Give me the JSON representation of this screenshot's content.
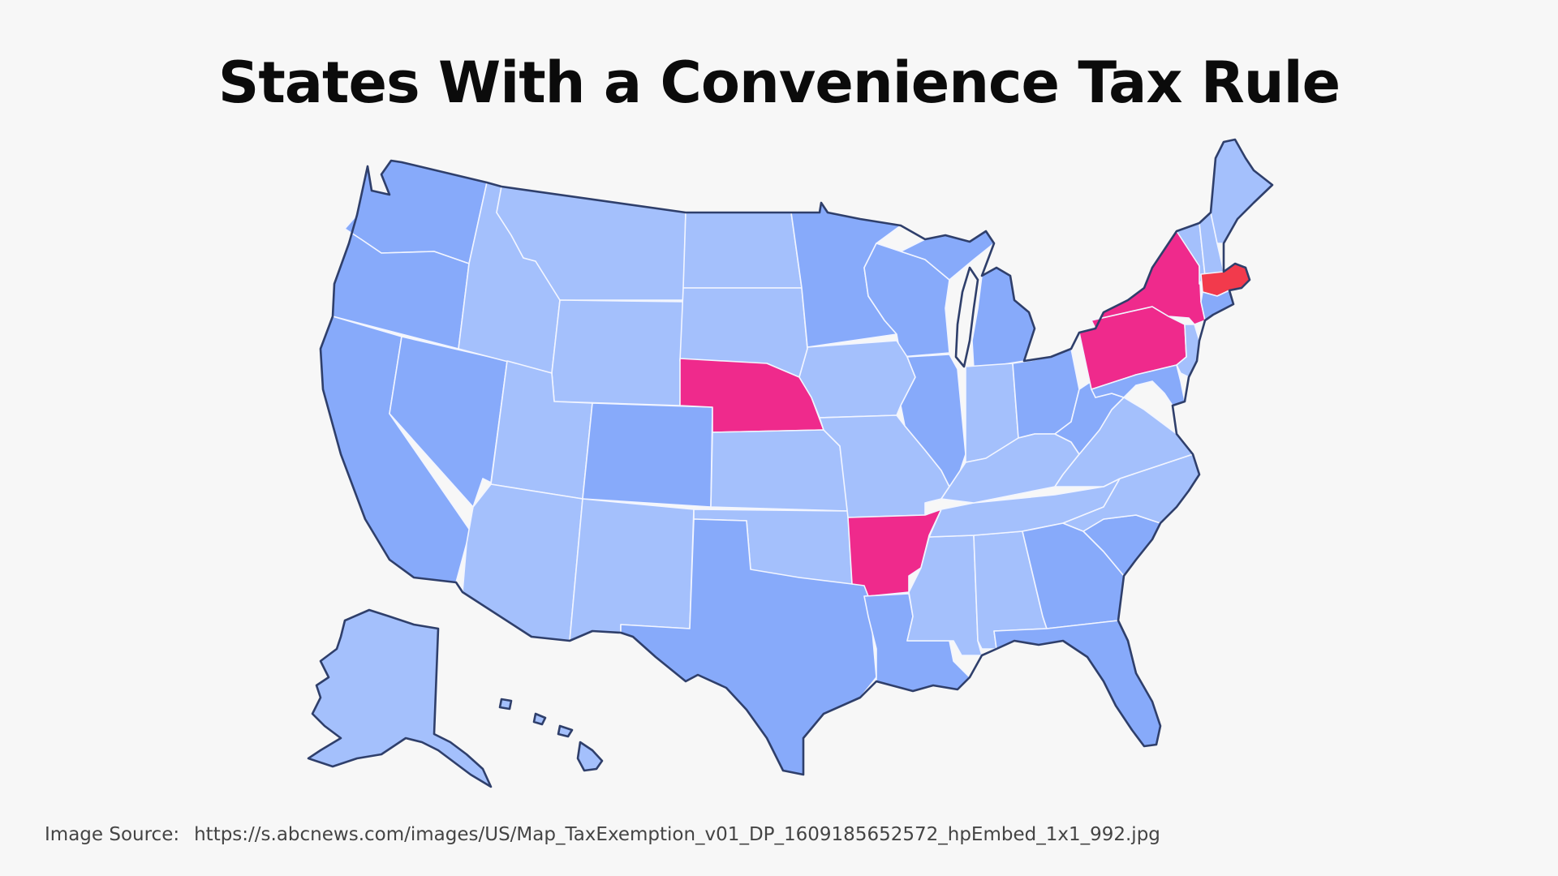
{
  "title": "States With a Convenience Tax Rule",
  "source": {
    "label": "Image Source:",
    "url": "https://s.abcnews.com/images/US/Map_TaxExemption_v01_DP_1609185652572_hpEmbed_1x1_992.jpg"
  },
  "colors": {
    "background": "#f7f7f7",
    "state_blue": "#87aafa",
    "state_light_blue": "#a4c0fc",
    "highlight_pink": "#ef2a8c",
    "highlight_red": "#f23a4c",
    "border": "#2f3f6b"
  },
  "highlighted_states": [
    "New York",
    "Pennsylvania",
    "Nebraska",
    "Arkansas",
    "Massachusetts"
  ]
}
